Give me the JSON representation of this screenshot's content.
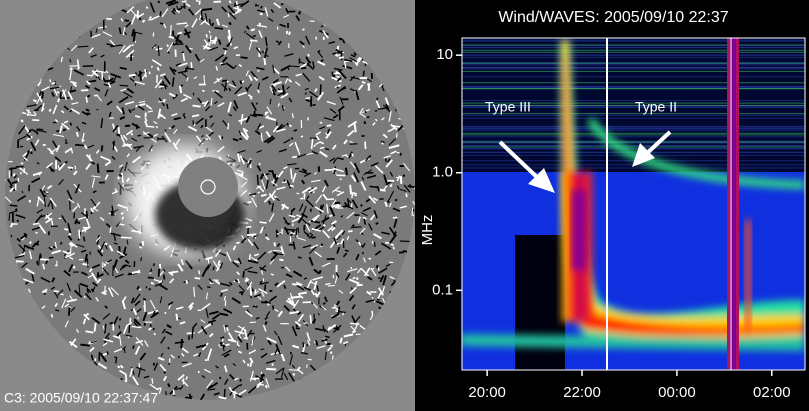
{
  "left_image": {
    "caption": "C3: 2005/09/10 22:37:47"
  },
  "chart_data": {
    "type": "spectrogram",
    "title": "Wind/WAVES: 2005/09/10 22:37",
    "y_label": "MHz",
    "y_log": true,
    "ylim": [
      0.021,
      14
    ],
    "yticks": [
      10,
      {
        "value": 1,
        "label": "1.0"
      },
      0.1
    ],
    "xlim": [
      19.47,
      26.7
    ],
    "xticks": [
      {
        "value": 20,
        "label": "20:00"
      },
      {
        "value": 22,
        "label": "22:00"
      },
      {
        "value": 24,
        "label": "00:00"
      },
      {
        "value": 26,
        "label": "02:00"
      }
    ],
    "annotations": [
      "Type III",
      "Type II"
    ]
  }
}
